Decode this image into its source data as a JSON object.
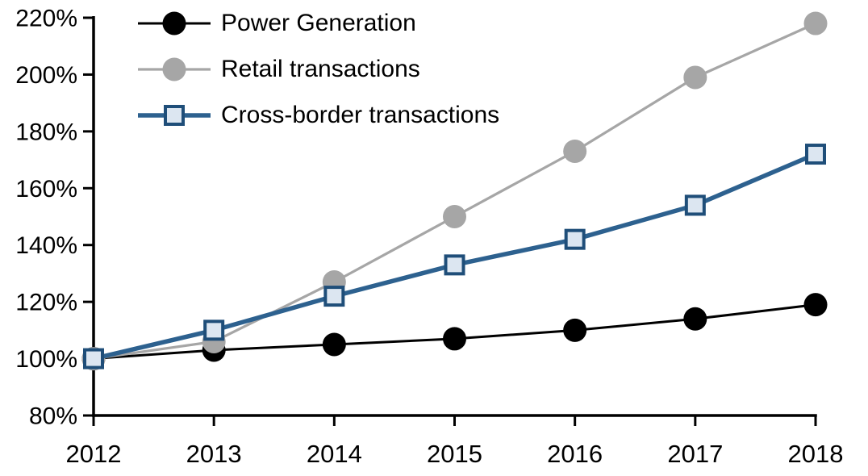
{
  "chart_data": {
    "type": "line",
    "title": "",
    "xlabel": "",
    "ylabel": "",
    "x": [
      2012,
      2013,
      2014,
      2015,
      2016,
      2017,
      2018
    ],
    "xtick_labels": [
      "2012",
      "2013",
      "2014",
      "2015",
      "2016",
      "2017",
      "2018"
    ],
    "ylim": [
      80,
      220
    ],
    "ytick_step": 20,
    "ytick_labels": [
      "80%",
      "100%",
      "120%",
      "140%",
      "160%",
      "180%",
      "200%",
      "220%"
    ],
    "grid": false,
    "legend_position": "top-left",
    "axis_color": "#000000",
    "series": [
      {
        "name": "Power Generation",
        "values": [
          100,
          103,
          105,
          107,
          110,
          114,
          119
        ],
        "color": "#000000",
        "marker": "circle",
        "marker_fill": "#000000",
        "line_width": 3
      },
      {
        "name": "Retail transactions",
        "values": [
          100,
          106,
          127,
          150,
          173,
          199,
          218
        ],
        "color": "#A6A6A6",
        "marker": "circle",
        "marker_fill": "#A6A6A6",
        "line_width": 3.25
      },
      {
        "name": "Cross-border transactions",
        "values": [
          100,
          110,
          122,
          133,
          142,
          154,
          172
        ],
        "color": "#2D618F",
        "marker": "square",
        "marker_fill": "#DCE6F1",
        "marker_stroke": "#1F4E79",
        "line_width": 5.5
      }
    ]
  }
}
